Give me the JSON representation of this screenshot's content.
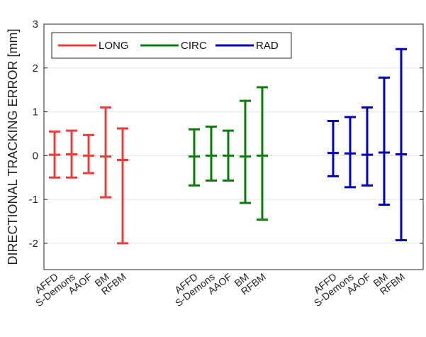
{
  "chart_data": {
    "type": "errorbar",
    "ylabel": "DIRECTIONAL TRACKING ERROR [mm]",
    "ylim": [
      -2.6,
      3
    ],
    "yticks": [
      -2,
      -1,
      0,
      1,
      2,
      3
    ],
    "grid": true,
    "legend_position": "top-left",
    "categories": [
      "AFFD",
      "S-Demons",
      "AAOF",
      "BM",
      "RFBM"
    ],
    "series": [
      {
        "name": "LONG",
        "color": "#ee3b3b",
        "mean": [
          0.02,
          0.03,
          0.0,
          -0.02,
          -0.1
        ],
        "lower": [
          -0.5,
          -0.5,
          -0.4,
          -0.95,
          -2.0
        ],
        "upper": [
          0.55,
          0.57,
          0.47,
          1.1,
          0.62
        ]
      },
      {
        "name": "CIRC",
        "color": "#0a7d0a",
        "mean": [
          -0.02,
          0.0,
          0.0,
          -0.02,
          0.0
        ],
        "lower": [
          -0.68,
          -0.57,
          -0.57,
          -1.08,
          -1.46
        ],
        "upper": [
          0.6,
          0.66,
          0.57,
          1.25,
          1.56
        ]
      },
      {
        "name": "RAD",
        "color": "#0000b8",
        "mean": [
          0.06,
          0.05,
          0.02,
          0.07,
          0.03
        ],
        "lower": [
          -0.47,
          -0.72,
          -0.68,
          -1.12,
          -1.93
        ],
        "upper": [
          0.79,
          0.88,
          1.1,
          1.78,
          2.43
        ]
      }
    ]
  }
}
